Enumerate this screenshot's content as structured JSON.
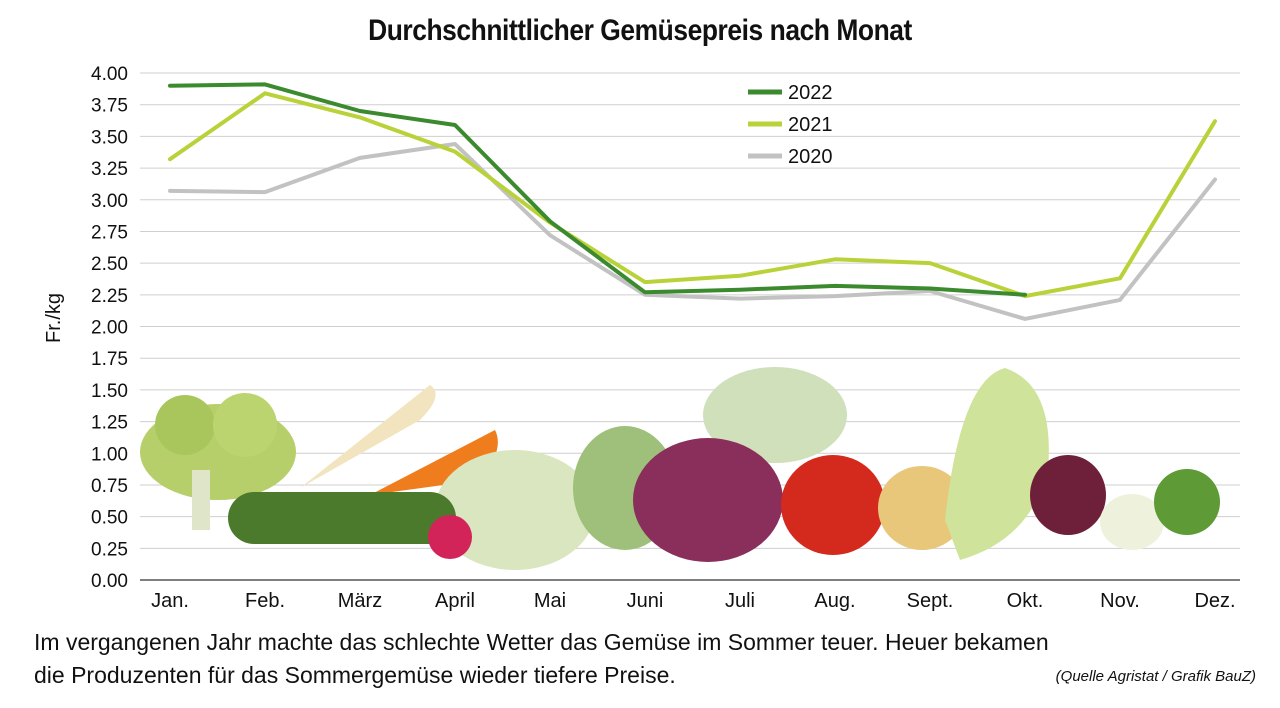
{
  "chart_data": {
    "type": "line",
    "title": "Durchschnittlicher Gemüsepreis nach Monat",
    "xlabel": "",
    "ylabel": "Fr./kg",
    "ylim": [
      0,
      4
    ],
    "yticks": [
      "0.00",
      "0.25",
      "0.50",
      "0.75",
      "1.00",
      "1.25",
      "1.50",
      "1.75",
      "2.00",
      "2.25",
      "2.50",
      "2.75",
      "3.00",
      "3.25",
      "3.50",
      "3.75",
      "4.00"
    ],
    "categories": [
      "Jan.",
      "Feb.",
      "März",
      "April",
      "Mai",
      "Juni",
      "Juli",
      "Aug.",
      "Sept.",
      "Okt.",
      "Nov.",
      "Dez."
    ],
    "grid": true,
    "legend_position": "top-center",
    "series": [
      {
        "name": "2022",
        "color": "#3b8a2e",
        "values": [
          3.9,
          3.91,
          3.7,
          3.59,
          2.83,
          2.27,
          2.29,
          2.32,
          2.3,
          2.25,
          null,
          null
        ]
      },
      {
        "name": "2021",
        "color": "#b9d23a",
        "values": [
          3.32,
          3.84,
          3.65,
          3.38,
          2.82,
          2.35,
          2.4,
          2.53,
          2.5,
          2.24,
          2.38,
          3.62
        ]
      },
      {
        "name": "2020",
        "color": "#c2c2c2",
        "values": [
          3.07,
          3.06,
          3.33,
          3.44,
          2.72,
          2.25,
          2.22,
          2.24,
          2.28,
          2.06,
          2.21,
          3.16
        ]
      }
    ]
  },
  "caption": {
    "line1": "Im vergangenen Jahr machte das schlechte Wetter das Gemüse im Sommer teuer. Heuer bekamen",
    "line2": "die Produzenten für das Sommergemüse wieder tiefere Preise.",
    "source": "(Quelle Agristat / Grafik BauZ)"
  },
  "illustration": {
    "label": "vegetables",
    "colors": {
      "cabbage": "#c9d9a6",
      "red_cabbage": "#8a2f5c",
      "tomato": "#d42a1e",
      "carrot": "#ef7d1e",
      "zucchini": "#4c7a2c"
    }
  }
}
